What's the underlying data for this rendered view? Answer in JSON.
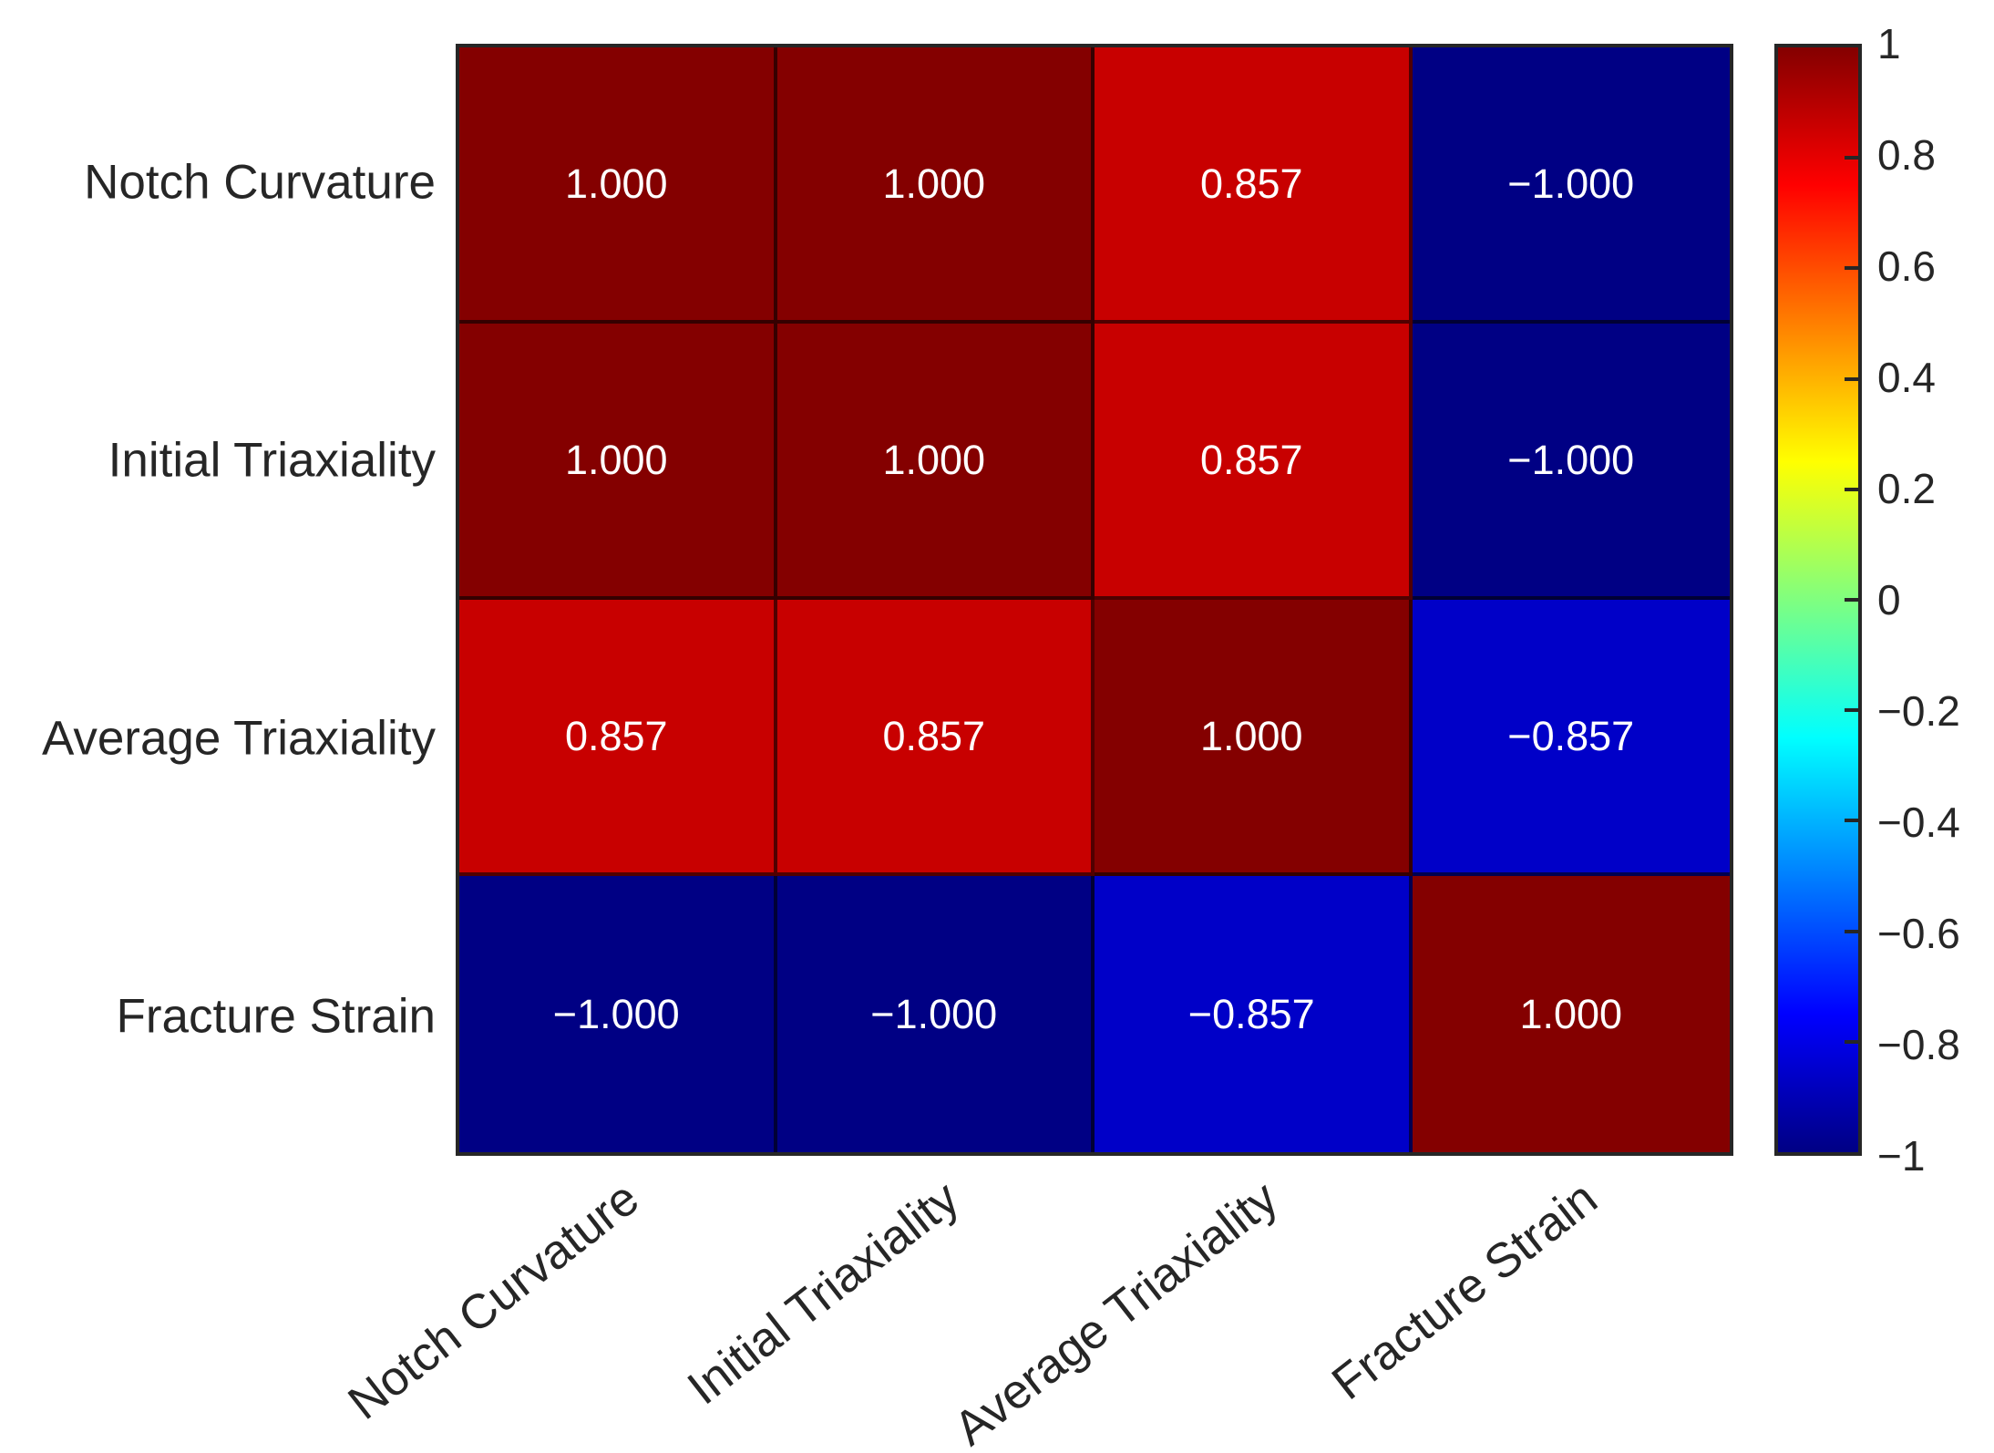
{
  "chart_data": {
    "type": "heatmap",
    "title": "",
    "x_categories": [
      "Notch Curvature",
      "Initial Triaxiality",
      "Average Triaxiality",
      "Fracture Strain"
    ],
    "y_categories": [
      "Notch Curvature",
      "Initial Triaxiality",
      "Average Triaxiality",
      "Fracture Strain"
    ],
    "matrix_values": [
      [
        1.0,
        1.0,
        0.857,
        -1.0
      ],
      [
        1.0,
        1.0,
        0.857,
        -1.0
      ],
      [
        0.857,
        0.857,
        1.0,
        -0.857
      ],
      [
        -1.0,
        -1.0,
        -0.857,
        1.0
      ]
    ],
    "matrix_labels": [
      [
        "1.000",
        "1.000",
        "0.857",
        "−1.000"
      ],
      [
        "1.000",
        "1.000",
        "0.857",
        "−1.000"
      ],
      [
        "0.857",
        "0.857",
        "1.000",
        "−0.857"
      ],
      [
        "−1.000",
        "−1.000",
        "−0.857",
        "1.000"
      ]
    ],
    "cell_colors": [
      [
        "#840000",
        "#840000",
        "#C80000",
        "#000084"
      ],
      [
        "#840000",
        "#840000",
        "#C80000",
        "#000084"
      ],
      [
        "#C80000",
        "#C80000",
        "#840000",
        "#0000C8"
      ],
      [
        "#000084",
        "#000084",
        "#0000C8",
        "#840000"
      ]
    ],
    "cell_text_color": "#ffffff",
    "axis_label_color": "#262626",
    "x_tick_rotation_deg": 38,
    "grid": true,
    "colormap": "jet",
    "colorbar": {
      "range": [
        -1,
        1
      ],
      "position": "right",
      "tick_labels": [
        "1",
        "0.8",
        "0.6",
        "0.4",
        "0.2",
        "0",
        "−0.2",
        "−0.4",
        "−0.6",
        "−0.8",
        "−1"
      ],
      "gradient_stops": [
        {
          "color": "#000084",
          "pos": "0%"
        },
        {
          "color": "#0000FF",
          "pos": "12.5%"
        },
        {
          "color": "#00FFFF",
          "pos": "37.5%"
        },
        {
          "color": "#FFFF00",
          "pos": "62.5%"
        },
        {
          "color": "#FF0000",
          "pos": "87.5%"
        },
        {
          "color": "#840000",
          "pos": "100%"
        }
      ]
    }
  }
}
